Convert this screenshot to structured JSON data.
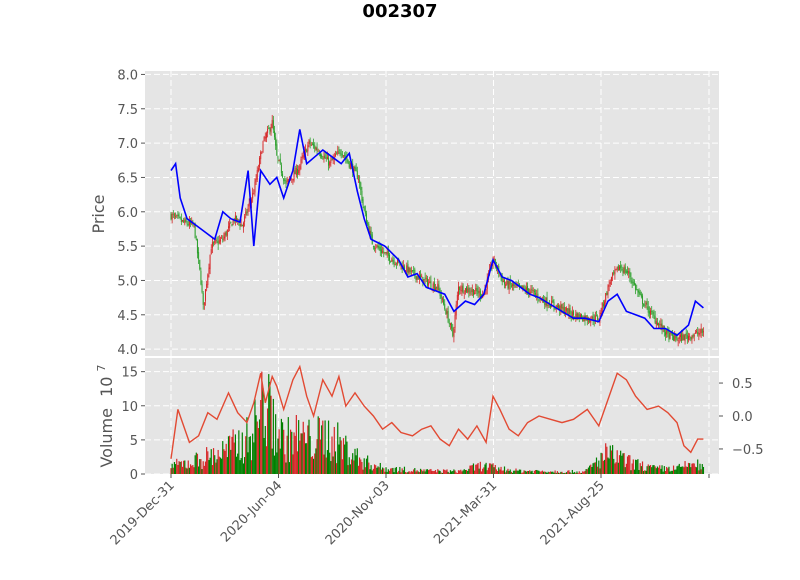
{
  "chart_data": {
    "title": "002307",
    "type": "candlestick",
    "x_tick_labels": [
      "2019-Dec-31",
      "2020-Jun-04",
      "2020-Nov-03",
      "2021-Mar-31",
      "2021-Aug-25"
    ],
    "price_panel": {
      "ylabel": "Price",
      "ylim": [
        3.9,
        8.05
      ],
      "y_ticks": [
        "4.0",
        "4.5",
        "5.0",
        "5.5",
        "6.0",
        "6.5",
        "7.0",
        "7.5",
        "8.0"
      ],
      "y_tick_values": [
        4.0,
        4.5,
        5.0,
        5.5,
        6.0,
        6.5,
        7.0,
        7.5,
        8.0
      ],
      "candle_up_color": "#d62728",
      "candle_down_color": "#2ca02c",
      "overlay_color": "#0000ff",
      "close_series": [
        [
          0,
          5.95
        ],
        [
          10,
          5.85
        ],
        [
          20,
          5.8
        ],
        [
          26,
          5.0
        ],
        [
          28,
          4.6
        ],
        [
          35,
          5.5
        ],
        [
          45,
          5.6
        ],
        [
          55,
          5.9
        ],
        [
          62,
          5.8
        ],
        [
          72,
          6.3
        ],
        [
          80,
          7.0
        ],
        [
          88,
          7.3
        ],
        [
          92,
          6.8
        ],
        [
          100,
          6.4
        ],
        [
          110,
          6.6
        ],
        [
          120,
          7.0
        ],
        [
          128,
          6.9
        ],
        [
          138,
          6.7
        ],
        [
          148,
          6.9
        ],
        [
          155,
          6.7
        ],
        [
          163,
          6.5
        ],
        [
          168,
          6.0
        ],
        [
          175,
          5.55
        ],
        [
          185,
          5.4
        ],
        [
          198,
          5.25
        ],
        [
          210,
          5.1
        ],
        [
          220,
          5.0
        ],
        [
          232,
          4.9
        ],
        [
          240,
          4.5
        ],
        [
          245,
          4.2
        ],
        [
          250,
          4.9
        ],
        [
          262,
          4.85
        ],
        [
          272,
          4.8
        ],
        [
          280,
          5.3
        ],
        [
          290,
          4.95
        ],
        [
          300,
          4.9
        ],
        [
          312,
          4.85
        ],
        [
          325,
          4.7
        ],
        [
          338,
          4.6
        ],
        [
          350,
          4.5
        ],
        [
          362,
          4.45
        ],
        [
          372,
          4.45
        ],
        [
          382,
          5.0
        ],
        [
          390,
          5.2
        ],
        [
          398,
          5.1
        ],
        [
          408,
          4.75
        ],
        [
          418,
          4.5
        ],
        [
          425,
          4.35
        ],
        [
          432,
          4.2
        ],
        [
          440,
          4.15
        ],
        [
          452,
          4.2
        ],
        [
          463,
          4.25
        ]
      ],
      "overlay_series": [
        [
          0,
          6.6
        ],
        [
          4,
          6.7
        ],
        [
          8,
          6.2
        ],
        [
          14,
          5.9
        ],
        [
          22,
          5.8
        ],
        [
          30,
          5.7
        ],
        [
          38,
          5.6
        ],
        [
          45,
          6.0
        ],
        [
          52,
          5.9
        ],
        [
          60,
          5.85
        ],
        [
          67,
          6.6
        ],
        [
          72,
          5.5
        ],
        [
          78,
          6.6
        ],
        [
          86,
          6.4
        ],
        [
          92,
          6.5
        ],
        [
          98,
          6.2
        ],
        [
          106,
          6.6
        ],
        [
          112,
          7.2
        ],
        [
          118,
          6.7
        ],
        [
          125,
          6.8
        ],
        [
          132,
          6.9
        ],
        [
          140,
          6.8
        ],
        [
          148,
          6.7
        ],
        [
          155,
          6.85
        ],
        [
          162,
          6.3
        ],
        [
          168,
          5.9
        ],
        [
          174,
          5.6
        ],
        [
          186,
          5.5
        ],
        [
          198,
          5.3
        ],
        [
          206,
          5.05
        ],
        [
          214,
          5.1
        ],
        [
          222,
          4.9
        ],
        [
          230,
          4.85
        ],
        [
          238,
          4.8
        ],
        [
          246,
          4.55
        ],
        [
          256,
          4.7
        ],
        [
          264,
          4.65
        ],
        [
          272,
          4.8
        ],
        [
          280,
          5.3
        ],
        [
          288,
          5.05
        ],
        [
          296,
          5.0
        ],
        [
          304,
          4.9
        ],
        [
          312,
          4.8
        ],
        [
          320,
          4.75
        ],
        [
          330,
          4.65
        ],
        [
          340,
          4.55
        ],
        [
          350,
          4.45
        ],
        [
          360,
          4.45
        ],
        [
          372,
          4.4
        ],
        [
          380,
          4.7
        ],
        [
          388,
          4.8
        ],
        [
          396,
          4.55
        ],
        [
          404,
          4.5
        ],
        [
          412,
          4.45
        ],
        [
          420,
          4.3
        ],
        [
          430,
          4.3
        ],
        [
          440,
          4.2
        ],
        [
          450,
          4.35
        ],
        [
          456,
          4.7
        ],
        [
          463,
          4.6
        ]
      ]
    },
    "volume_panel": {
      "ylabel": "Volume",
      "scale_label": "10",
      "scale_exponent": "7",
      "ylim": [
        0,
        17
      ],
      "y_ticks": [
        "0",
        "5",
        "10",
        "15"
      ],
      "y_tick_values": [
        0,
        5,
        10,
        15
      ],
      "right_ylim": [
        -0.88,
        0.88
      ],
      "right_ticks": [
        "0.5",
        "0.0",
        "−0.5"
      ],
      "right_tick_values": [
        0.5,
        0.0,
        -0.5
      ],
      "indicator_color": "#e24a33",
      "volume_profile": [
        [
          0,
          1.5
        ],
        [
          15,
          2.0
        ],
        [
          30,
          3.0
        ],
        [
          45,
          4.0
        ],
        [
          55,
          5.0
        ],
        [
          65,
          6.0
        ],
        [
          72,
          8.0
        ],
        [
          80,
          13.0
        ],
        [
          88,
          10.0
        ],
        [
          98,
          6.0
        ],
        [
          110,
          7.0
        ],
        [
          122,
          6.0
        ],
        [
          135,
          7.0
        ],
        [
          150,
          5.0
        ],
        [
          165,
          2.5
        ],
        [
          185,
          1.0
        ],
        [
          220,
          0.6
        ],
        [
          250,
          0.5
        ],
        [
          270,
          1.5
        ],
        [
          285,
          1.0
        ],
        [
          300,
          0.6
        ],
        [
          330,
          0.5
        ],
        [
          360,
          0.4
        ],
        [
          378,
          3.5
        ],
        [
          388,
          3.0
        ],
        [
          400,
          2.0
        ],
        [
          420,
          1.0
        ],
        [
          440,
          1.0
        ],
        [
          455,
          2.0
        ],
        [
          463,
          1.0
        ]
      ],
      "indicator_series": [
        [
          0,
          -0.65
        ],
        [
          6,
          0.1
        ],
        [
          10,
          -0.1
        ],
        [
          16,
          -0.4
        ],
        [
          24,
          -0.3
        ],
        [
          32,
          0.05
        ],
        [
          40,
          -0.05
        ],
        [
          50,
          0.35
        ],
        [
          58,
          0.05
        ],
        [
          66,
          -0.1
        ],
        [
          72,
          0.2
        ],
        [
          78,
          0.65
        ],
        [
          82,
          0.2
        ],
        [
          88,
          0.6
        ],
        [
          92,
          0.45
        ],
        [
          98,
          0.1
        ],
        [
          106,
          0.55
        ],
        [
          112,
          0.75
        ],
        [
          118,
          0.3
        ],
        [
          124,
          0.0
        ],
        [
          132,
          0.55
        ],
        [
          140,
          0.3
        ],
        [
          146,
          0.6
        ],
        [
          152,
          0.15
        ],
        [
          160,
          0.35
        ],
        [
          168,
          0.15
        ],
        [
          176,
          0.0
        ],
        [
          184,
          -0.2
        ],
        [
          192,
          -0.1
        ],
        [
          200,
          -0.25
        ],
        [
          210,
          -0.3
        ],
        [
          218,
          -0.2
        ],
        [
          226,
          -0.15
        ],
        [
          234,
          -0.35
        ],
        [
          242,
          -0.45
        ],
        [
          250,
          -0.2
        ],
        [
          258,
          -0.35
        ],
        [
          266,
          -0.15
        ],
        [
          274,
          -0.4
        ],
        [
          280,
          0.3
        ],
        [
          286,
          0.1
        ],
        [
          294,
          -0.2
        ],
        [
          302,
          -0.3
        ],
        [
          310,
          -0.1
        ],
        [
          320,
          0.0
        ],
        [
          330,
          -0.05
        ],
        [
          340,
          -0.1
        ],
        [
          350,
          -0.05
        ],
        [
          362,
          0.1
        ],
        [
          372,
          -0.15
        ],
        [
          380,
          0.25
        ],
        [
          388,
          0.65
        ],
        [
          396,
          0.55
        ],
        [
          404,
          0.3
        ],
        [
          414,
          0.1
        ],
        [
          424,
          0.15
        ],
        [
          432,
          0.05
        ],
        [
          440,
          -0.1
        ],
        [
          446,
          -0.45
        ],
        [
          452,
          -0.55
        ],
        [
          458,
          -0.35
        ],
        [
          463,
          -0.35
        ]
      ]
    }
  }
}
